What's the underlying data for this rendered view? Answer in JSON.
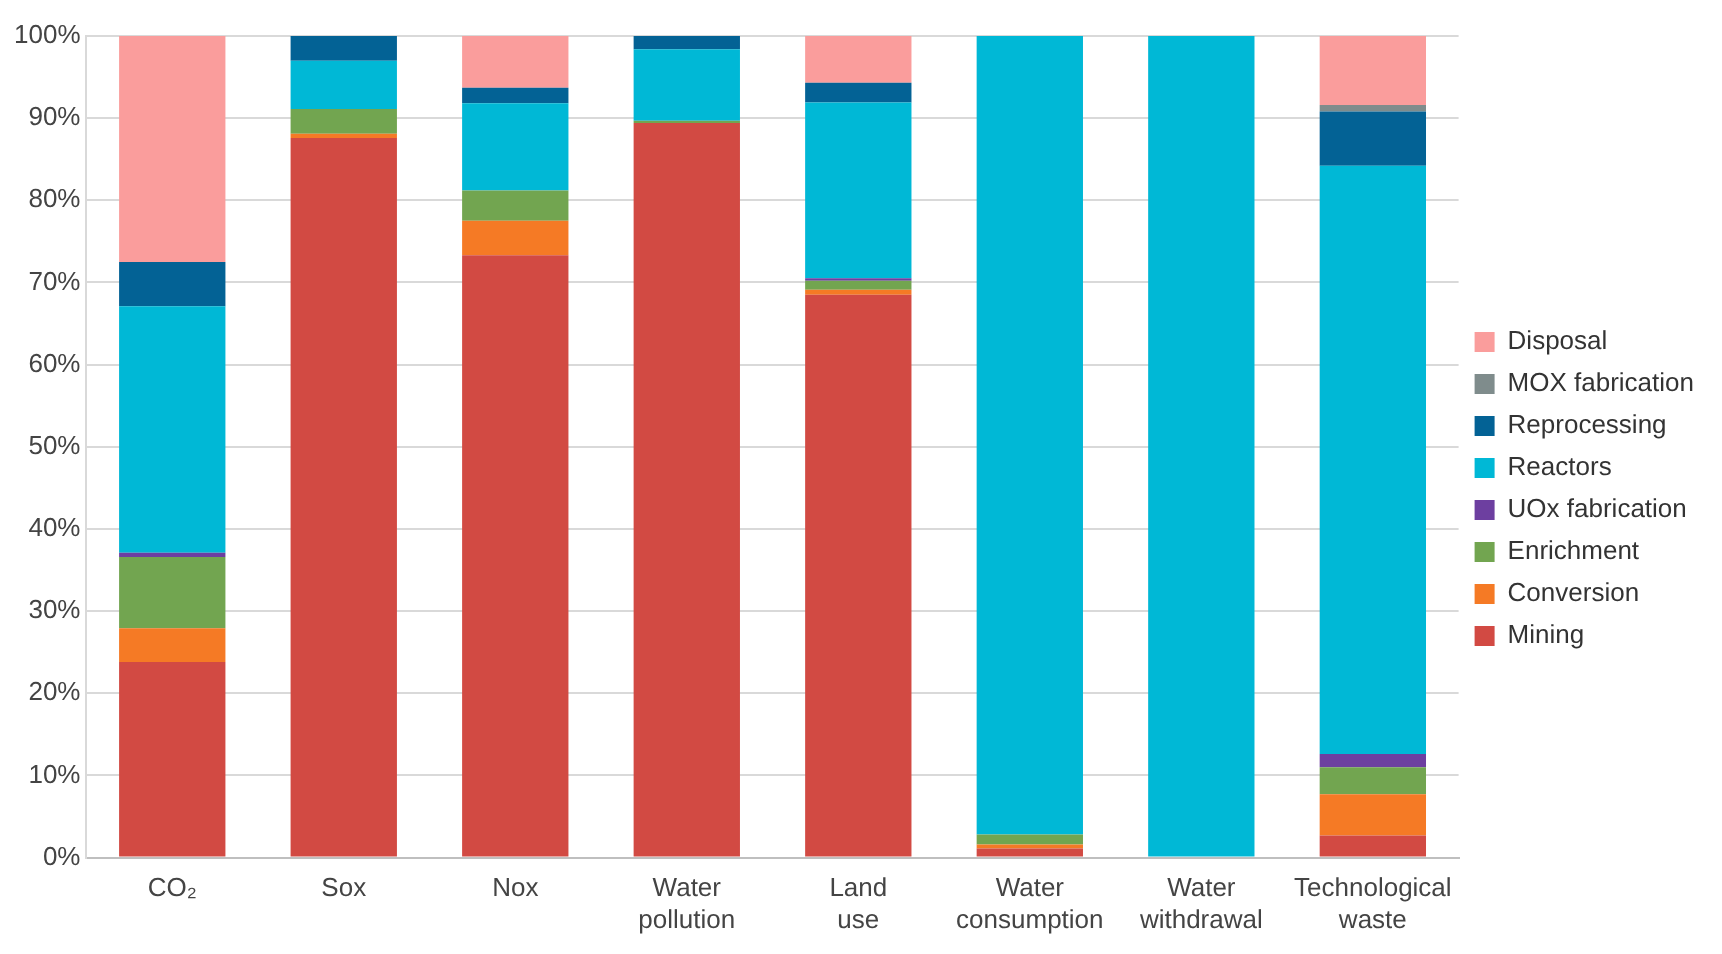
{
  "chart_data": {
    "type": "bar",
    "stacked": true,
    "categories": [
      "CO₂",
      "Sox",
      "Nox",
      "Water pollution",
      "Land use",
      "Water consumption",
      "Water withdrawal",
      "Technological waste"
    ],
    "series": [
      {
        "name": "Mining",
        "color": "#d24a43",
        "values": [
          23.8,
          87.6,
          73.3,
          89.4,
          68.5,
          1.1,
          0,
          2.7
        ]
      },
      {
        "name": "Conversion",
        "color": "#f57a25",
        "values": [
          4.1,
          0.5,
          4.2,
          0,
          0.6,
          0.5,
          0,
          5.0
        ]
      },
      {
        "name": "Enrichment",
        "color": "#72a550",
        "values": [
          8.7,
          3.0,
          3.7,
          0.3,
          1.1,
          1.2,
          0,
          3.3
        ]
      },
      {
        "name": "UOx fabrication",
        "color": "#6d3fa0",
        "values": [
          0.5,
          0,
          0,
          0,
          0.3,
          0,
          0,
          1.6
        ]
      },
      {
        "name": "Reactors",
        "color": "#00b8d6",
        "values": [
          30.0,
          5.9,
          10.6,
          8.7,
          21.4,
          97.2,
          100,
          71.6
        ]
      },
      {
        "name": "Reprocessing",
        "color": "#036295",
        "values": [
          5.4,
          3.0,
          1.9,
          1.6,
          2.4,
          0,
          0,
          6.6
        ]
      },
      {
        "name": "MOX fabrication",
        "color": "#7f8c8c",
        "values": [
          0,
          0,
          0,
          0,
          0,
          0,
          0,
          0.8
        ]
      },
      {
        "name": "Disposal",
        "color": "#fa9d9c",
        "values": [
          27.5,
          0,
          6.3,
          0,
          5.7,
          0,
          0,
          8.4
        ]
      }
    ],
    "ylim": [
      0,
      100
    ],
    "yticks": [
      {
        "value": 0,
        "label": "0%"
      },
      {
        "value": 10,
        "label": "10%"
      },
      {
        "value": 20,
        "label": "20%"
      },
      {
        "value": 30,
        "label": "30%"
      },
      {
        "value": 40,
        "label": "40%"
      },
      {
        "value": 50,
        "label": "50%"
      },
      {
        "value": 60,
        "label": "60%"
      },
      {
        "value": 70,
        "label": "70%"
      },
      {
        "value": 80,
        "label": "80%"
      },
      {
        "value": 90,
        "label": "90%"
      },
      {
        "value": 100,
        "label": "100%"
      }
    ],
    "grid": "y",
    "legend": "right"
  }
}
